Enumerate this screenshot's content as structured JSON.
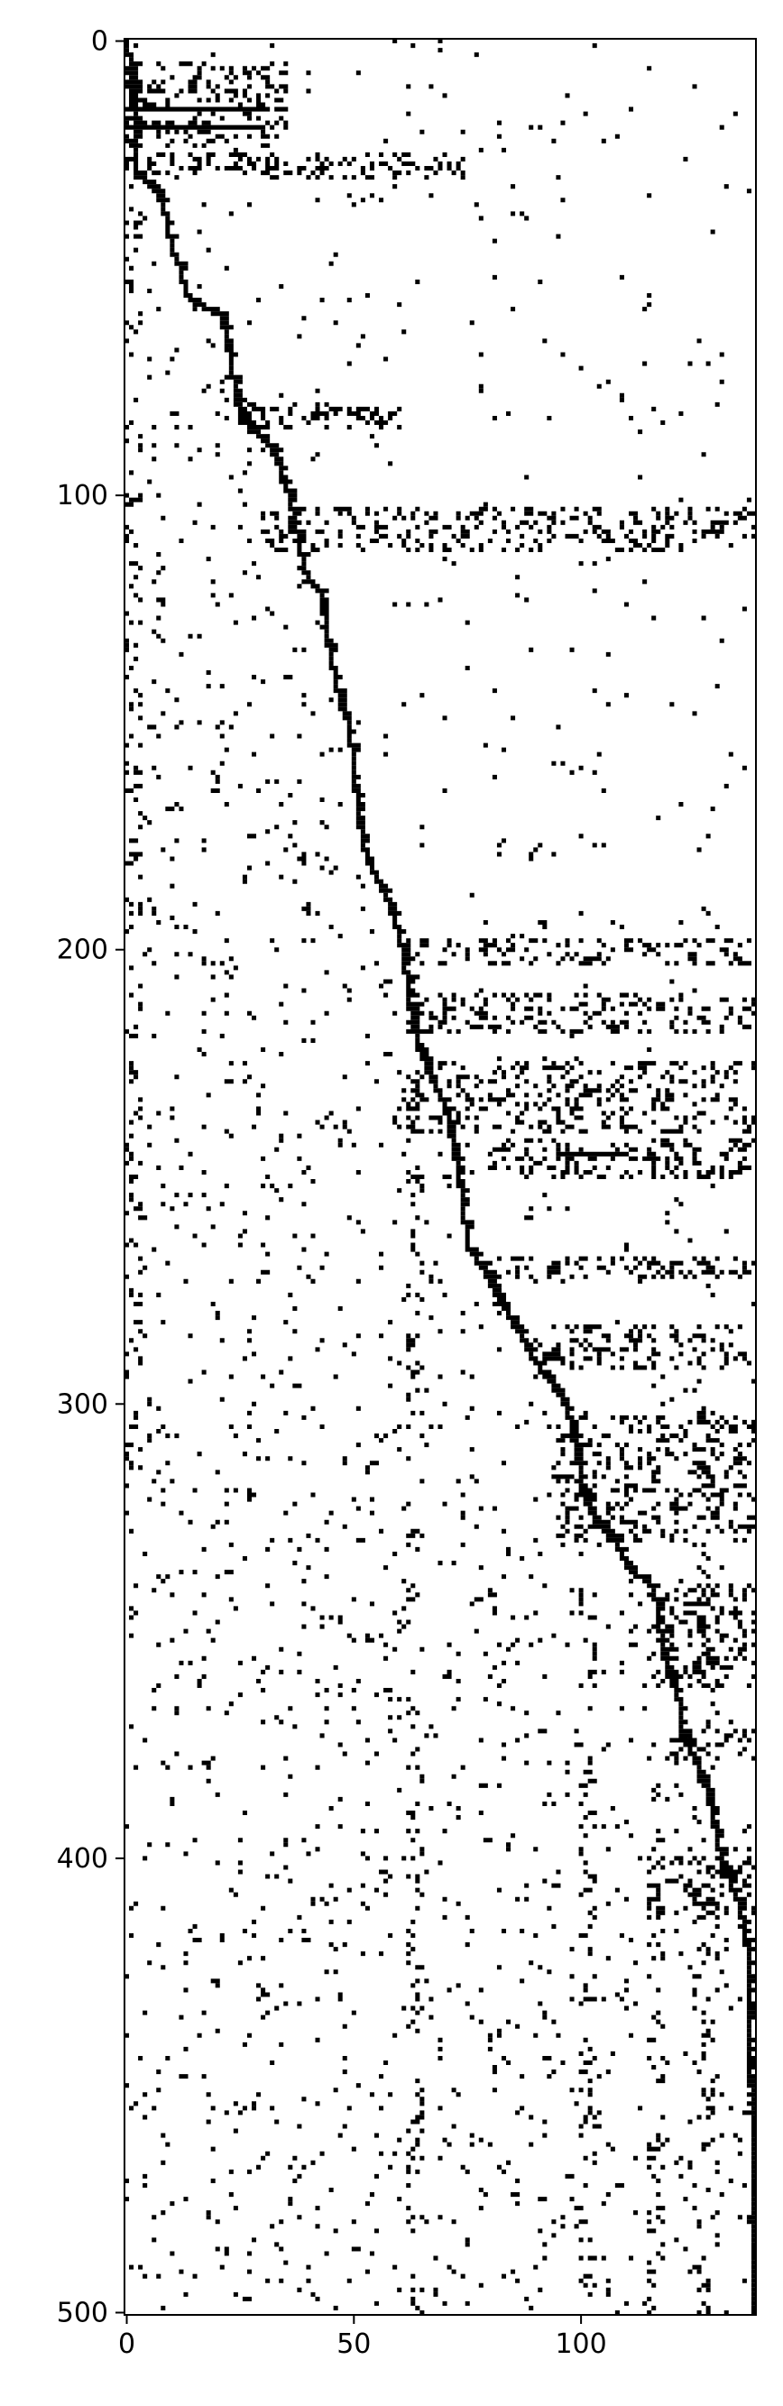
{
  "chart_data": {
    "type": "heatmap",
    "subtype": "sparsity-pattern",
    "title": "",
    "xlabel": "",
    "ylabel": "",
    "n_rows": 501,
    "n_cols": 139,
    "xlim": [
      0,
      138
    ],
    "ylim": [
      500,
      0
    ],
    "y_axis_inverted": true,
    "xticks": [
      0,
      50,
      100
    ],
    "yticks": [
      0,
      100,
      200,
      300,
      400,
      500
    ],
    "grid": false,
    "legend": "none",
    "marker_color": "#000000",
    "background_color": "#ffffff",
    "diagonal_path": [
      [
        0,
        0
      ],
      [
        1,
        5
      ],
      [
        2,
        15
      ],
      [
        2,
        28
      ],
      [
        5,
        31
      ],
      [
        8,
        35
      ],
      [
        9,
        40
      ],
      [
        10,
        45
      ],
      [
        12,
        50
      ],
      [
        13,
        55
      ],
      [
        15,
        57
      ],
      [
        21,
        60
      ],
      [
        22,
        65
      ],
      [
        23,
        71
      ],
      [
        24,
        76
      ],
      [
        25,
        81
      ],
      [
        27,
        85
      ],
      [
        30,
        87
      ],
      [
        33,
        90
      ],
      [
        34,
        95
      ],
      [
        36,
        100
      ],
      [
        37,
        105
      ],
      [
        38,
        110
      ],
      [
        39,
        115
      ],
      [
        40,
        118
      ],
      [
        43,
        121
      ],
      [
        44,
        130
      ],
      [
        45,
        135
      ],
      [
        46,
        140
      ],
      [
        47,
        145
      ],
      [
        49,
        150
      ],
      [
        50,
        160
      ],
      [
        51,
        170
      ],
      [
        53,
        180
      ],
      [
        56,
        185
      ],
      [
        58,
        190
      ],
      [
        61,
        200
      ],
      [
        62,
        210
      ],
      [
        63,
        215
      ],
      [
        64,
        220
      ],
      [
        66,
        225
      ],
      [
        67,
        228
      ],
      [
        70,
        233
      ],
      [
        71,
        238
      ],
      [
        72,
        243
      ],
      [
        73,
        248
      ],
      [
        74,
        255
      ],
      [
        75,
        265
      ],
      [
        79,
        270
      ],
      [
        81,
        275
      ],
      [
        83,
        278
      ],
      [
        86,
        283
      ],
      [
        90,
        290
      ],
      [
        97,
        300
      ],
      [
        99,
        310
      ],
      [
        101,
        320
      ],
      [
        103,
        325
      ],
      [
        108,
        330
      ],
      [
        110,
        335
      ],
      [
        116,
        340
      ],
      [
        117,
        345
      ],
      [
        118,
        355
      ],
      [
        121,
        360
      ],
      [
        122,
        370
      ],
      [
        126,
        380
      ],
      [
        128,
        385
      ],
      [
        129,
        390
      ],
      [
        130,
        395
      ],
      [
        131,
        400
      ],
      [
        133,
        405
      ],
      [
        135,
        410
      ],
      [
        137,
        420
      ],
      [
        137,
        440
      ],
      [
        138,
        460
      ],
      [
        138,
        475
      ],
      [
        138,
        500
      ]
    ],
    "dense_row_bands": [
      {
        "rows": [
          5,
          23
        ],
        "cols": [
          0,
          35
        ]
      },
      {
        "rows": [
          25,
          30
        ],
        "cols": [
          0,
          75
        ]
      },
      {
        "rows": [
          80,
          85
        ],
        "cols": [
          20,
          60
        ]
      },
      {
        "rows": [
          103,
          112
        ],
        "cols": [
          30,
          138
        ]
      },
      {
        "rows": [
          198,
          203
        ],
        "cols": [
          62,
          138
        ]
      },
      {
        "rows": [
          210,
          218
        ],
        "cols": [
          62,
          138
        ]
      },
      {
        "rows": [
          225,
          240
        ],
        "cols": [
          62,
          138
        ]
      },
      {
        "rows": [
          242,
          250
        ],
        "cols": [
          80,
          138
        ]
      },
      {
        "rows": [
          268,
          272
        ],
        "cols": [
          80,
          138
        ]
      },
      {
        "rows": [
          283,
          292
        ],
        "cols": [
          90,
          138
        ]
      },
      {
        "rows": [
          303,
          330
        ],
        "cols": [
          95,
          138
        ]
      },
      {
        "rows": [
          340,
          362
        ],
        "cols": [
          115,
          138
        ]
      },
      {
        "rows": [
          372,
          378
        ],
        "cols": [
          120,
          138
        ]
      },
      {
        "rows": [
          400,
          412
        ],
        "cols": [
          115,
          138
        ]
      }
    ],
    "dense_col_bands": [
      {
        "cols": [
          62,
          65
        ],
        "rows": [
          200,
          500
        ]
      },
      {
        "cols": [
          100,
          103
        ],
        "rows": [
          340,
          500
        ]
      },
      {
        "cols": [
          115,
          118
        ],
        "rows": [
          380,
          500
        ]
      },
      {
        "cols": [
          125,
          130
        ],
        "rows": [
          300,
          500
        ]
      },
      {
        "cols": [
          0,
          3
        ],
        "rows": [
          0,
          320
        ]
      }
    ],
    "horizontal_segments": [
      {
        "row": 15,
        "cols": [
          0,
          30
        ]
      },
      {
        "row": 19,
        "cols": [
          0,
          30
        ]
      },
      {
        "row": 245,
        "cols": [
          95,
          110
        ]
      }
    ],
    "density": {
      "scatter_rate_row_lower": 0.035,
      "scatter_rate_col_upper": 0.012,
      "band_fill_rate": 0.45
    }
  }
}
